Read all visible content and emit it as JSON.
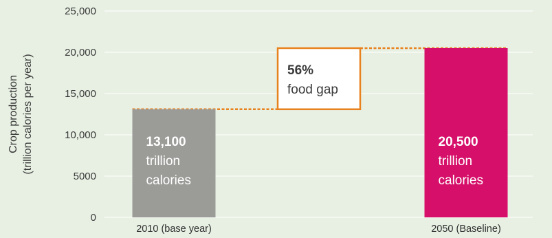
{
  "chart_data": {
    "type": "bar",
    "categories": [
      "2010 (base year)",
      "2050 (Baseline)"
    ],
    "values": [
      13100,
      20500
    ],
    "bar_colors": [
      "#9b9b98",
      "#d6106a"
    ],
    "bar_labels": [
      {
        "value": "13,100",
        "line1": "trillion",
        "line2": "calories"
      },
      {
        "value": "20,500",
        "line1": "trillion",
        "line2": "calories"
      }
    ],
    "ylabel_lines": [
      "Crop production",
      "(trillion calories per year)"
    ],
    "ylim": [
      0,
      25000
    ],
    "yticks": [
      0,
      5000,
      10000,
      15000,
      20000,
      25000
    ],
    "ytick_labels": [
      "0",
      "5000",
      "10,000",
      "15,000",
      "20,000",
      "25,000"
    ],
    "grid": true,
    "annotation": {
      "percent": "56%",
      "text": "food gap",
      "color": "#e8821e"
    }
  }
}
